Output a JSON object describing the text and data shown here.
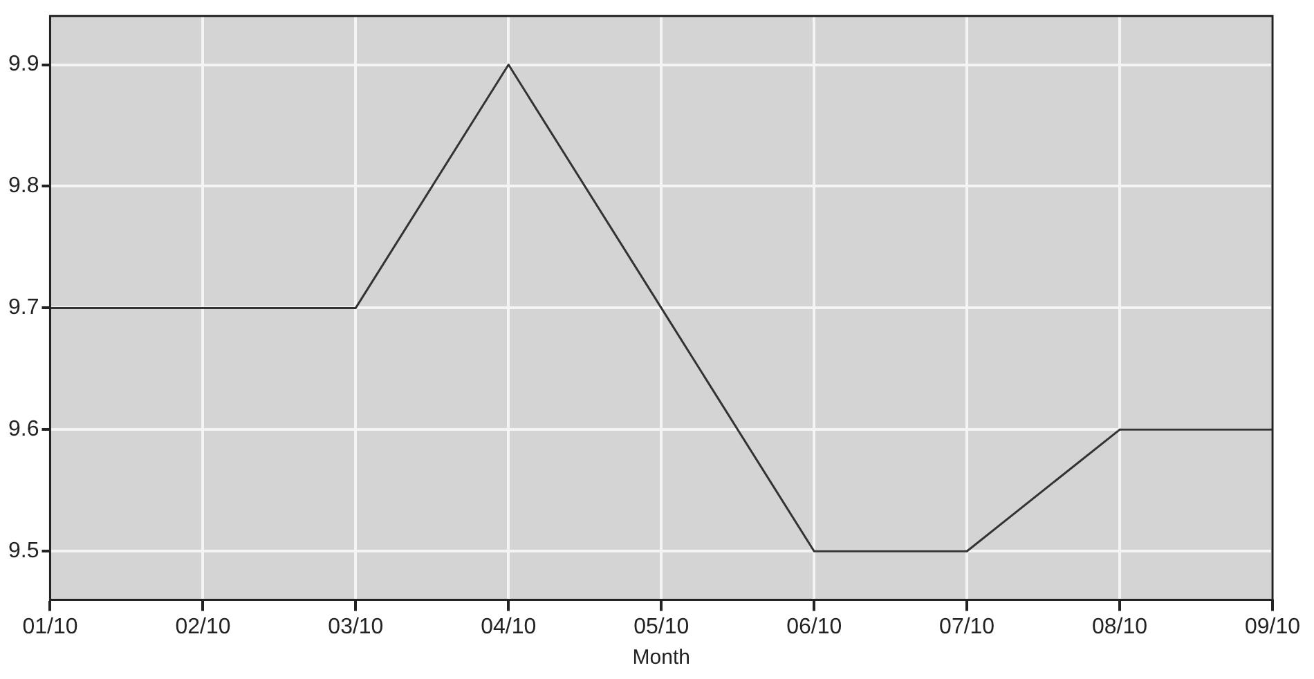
{
  "chart_data": {
    "type": "line",
    "xlabel": "Month",
    "categories": [
      "01/10",
      "02/10",
      "03/10",
      "04/10",
      "05/10",
      "06/10",
      "07/10",
      "08/10",
      "09/10"
    ],
    "series": [
      {
        "color": "#333333",
        "values": [
          9.7,
          9.7,
          9.7,
          9.9,
          9.7,
          9.5,
          9.5,
          9.6,
          9.6
        ]
      }
    ],
    "ylim": [
      9.46,
      9.94
    ],
    "yticks": [
      9.5,
      9.6,
      9.7,
      9.8,
      9.9
    ],
    "grid": true,
    "legend": false,
    "marker": "none",
    "line_style": "solid"
  }
}
